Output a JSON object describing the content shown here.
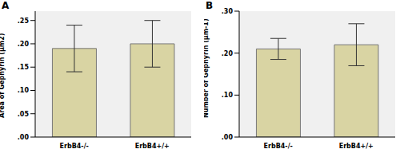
{
  "chart_data": [
    {
      "type": "bar",
      "title": "A",
      "y_label": "Area of Gephyrin (μm2)",
      "categories": [
        "ErbB4-/-",
        "ErbB4+/+"
      ],
      "values": [
        0.19,
        0.2
      ],
      "errors": [
        0.05,
        0.05
      ],
      "color": "#d9d4a3",
      "ylim": [
        0,
        0.27
      ],
      "yticks": [
        {
          "value": 0,
          "label": ".00"
        },
        {
          "value": 0.05,
          "label": ".05"
        },
        {
          "value": 0.1,
          "label": ".10"
        },
        {
          "value": 0.15,
          "label": ".15"
        },
        {
          "value": 0.2,
          "label": ".20"
        },
        {
          "value": 0.25,
          "label": ".25"
        }
      ]
    },
    {
      "type": "bar",
      "title": "B",
      "y_label": "Number of Gephyrin (μm-1)",
      "categories": [
        "ErbB4-/-",
        "ErbB4+/+"
      ],
      "values": [
        0.21,
        0.22
      ],
      "errors": [
        0.025,
        0.05
      ],
      "color": "#d9d4a3",
      "ylim": [
        0,
        0.3
      ],
      "yticks": [
        {
          "value": 0,
          "label": ".00"
        },
        {
          "value": 0.1,
          "label": ".10"
        },
        {
          "value": 0.2,
          "label": ".20"
        },
        {
          "value": 0.3,
          "label": ".30"
        }
      ]
    }
  ]
}
